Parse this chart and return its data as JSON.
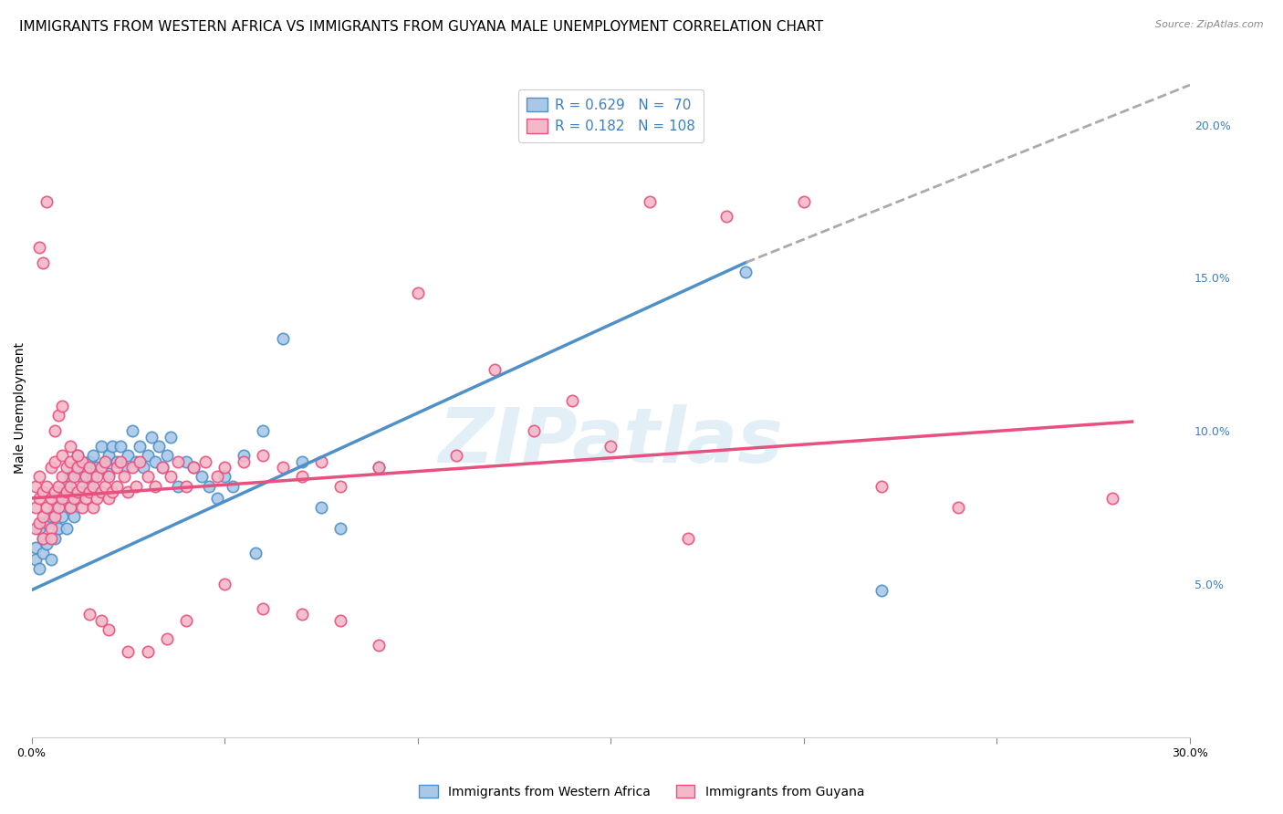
{
  "title": "IMMIGRANTS FROM WESTERN AFRICA VS IMMIGRANTS FROM GUYANA MALE UNEMPLOYMENT CORRELATION CHART",
  "source": "Source: ZipAtlas.com",
  "ylabel": "Male Unemployment",
  "xlim": [
    0.0,
    0.3
  ],
  "ylim": [
    0.0,
    0.215
  ],
  "yticks_right": [
    0.05,
    0.1,
    0.15,
    0.2
  ],
  "ytick_labels_right": [
    "5.0%",
    "10.0%",
    "15.0%",
    "20.0%"
  ],
  "color_blue_fill": "#a8c8e8",
  "color_pink_fill": "#f4b8c8",
  "color_blue_line": "#5090c8",
  "color_pink_line": "#e85080",
  "color_blue_text": "#4080c0",
  "color_dashed_line": "#aaaaaa",
  "watermark": "ZIPatlas",
  "legend_label_blue": "Immigrants from Western Africa",
  "legend_label_pink": "Immigrants from Guyana",
  "blue_line_x": [
    0.0,
    0.185
  ],
  "blue_line_y": [
    0.048,
    0.155
  ],
  "pink_line_x": [
    0.0,
    0.285
  ],
  "pink_line_y": [
    0.078,
    0.103
  ],
  "dashed_line_x": [
    0.185,
    0.3
  ],
  "dashed_line_y": [
    0.155,
    0.213
  ],
  "bg_color": "#ffffff",
  "grid_color": "#dddddd",
  "title_fontsize": 11,
  "axis_fontsize": 10,
  "blue_scatter_x": [
    0.001,
    0.001,
    0.002,
    0.002,
    0.003,
    0.003,
    0.004,
    0.004,
    0.005,
    0.005,
    0.006,
    0.006,
    0.007,
    0.007,
    0.008,
    0.008,
    0.009,
    0.009,
    0.01,
    0.01,
    0.011,
    0.011,
    0.012,
    0.012,
    0.013,
    0.013,
    0.014,
    0.015,
    0.015,
    0.016,
    0.016,
    0.017,
    0.018,
    0.019,
    0.02,
    0.02,
    0.021,
    0.022,
    0.023,
    0.024,
    0.025,
    0.026,
    0.027,
    0.028,
    0.029,
    0.03,
    0.031,
    0.032,
    0.033,
    0.034,
    0.035,
    0.036,
    0.038,
    0.04,
    0.042,
    0.044,
    0.046,
    0.048,
    0.05,
    0.052,
    0.055,
    0.058,
    0.06,
    0.065,
    0.07,
    0.075,
    0.08,
    0.09,
    0.185,
    0.22
  ],
  "blue_scatter_y": [
    0.058,
    0.062,
    0.055,
    0.068,
    0.06,
    0.065,
    0.063,
    0.07,
    0.058,
    0.072,
    0.065,
    0.075,
    0.068,
    0.078,
    0.072,
    0.08,
    0.068,
    0.082,
    0.075,
    0.085,
    0.072,
    0.088,
    0.078,
    0.092,
    0.08,
    0.085,
    0.088,
    0.082,
    0.09,
    0.085,
    0.092,
    0.088,
    0.095,
    0.09,
    0.092,
    0.086,
    0.095,
    0.09,
    0.095,
    0.088,
    0.092,
    0.1,
    0.09,
    0.095,
    0.088,
    0.092,
    0.098,
    0.09,
    0.095,
    0.088,
    0.092,
    0.098,
    0.082,
    0.09,
    0.088,
    0.085,
    0.082,
    0.078,
    0.085,
    0.082,
    0.092,
    0.06,
    0.1,
    0.13,
    0.09,
    0.075,
    0.068,
    0.088,
    0.152,
    0.048
  ],
  "pink_scatter_x": [
    0.001,
    0.001,
    0.001,
    0.002,
    0.002,
    0.002,
    0.003,
    0.003,
    0.003,
    0.004,
    0.004,
    0.005,
    0.005,
    0.005,
    0.006,
    0.006,
    0.006,
    0.007,
    0.007,
    0.008,
    0.008,
    0.008,
    0.009,
    0.009,
    0.01,
    0.01,
    0.01,
    0.011,
    0.011,
    0.012,
    0.012,
    0.013,
    0.013,
    0.013,
    0.014,
    0.014,
    0.015,
    0.015,
    0.016,
    0.016,
    0.017,
    0.017,
    0.018,
    0.018,
    0.019,
    0.019,
    0.02,
    0.02,
    0.021,
    0.022,
    0.022,
    0.023,
    0.024,
    0.025,
    0.026,
    0.027,
    0.028,
    0.03,
    0.032,
    0.034,
    0.036,
    0.038,
    0.04,
    0.042,
    0.045,
    0.048,
    0.05,
    0.055,
    0.06,
    0.065,
    0.07,
    0.075,
    0.08,
    0.09,
    0.1,
    0.11,
    0.12,
    0.13,
    0.14,
    0.15,
    0.16,
    0.17,
    0.18,
    0.2,
    0.22,
    0.24,
    0.28,
    0.002,
    0.003,
    0.004,
    0.005,
    0.006,
    0.007,
    0.008,
    0.01,
    0.012,
    0.015,
    0.018,
    0.02,
    0.025,
    0.03,
    0.035,
    0.04,
    0.05,
    0.06,
    0.07,
    0.08,
    0.09
  ],
  "pink_scatter_y": [
    0.068,
    0.075,
    0.082,
    0.07,
    0.078,
    0.085,
    0.065,
    0.072,
    0.08,
    0.075,
    0.082,
    0.068,
    0.078,
    0.088,
    0.072,
    0.08,
    0.09,
    0.075,
    0.082,
    0.078,
    0.085,
    0.092,
    0.08,
    0.088,
    0.075,
    0.082,
    0.09,
    0.078,
    0.085,
    0.08,
    0.088,
    0.075,
    0.082,
    0.09,
    0.078,
    0.085,
    0.08,
    0.088,
    0.075,
    0.082,
    0.078,
    0.085,
    0.08,
    0.088,
    0.082,
    0.09,
    0.078,
    0.085,
    0.08,
    0.088,
    0.082,
    0.09,
    0.085,
    0.08,
    0.088,
    0.082,
    0.09,
    0.085,
    0.082,
    0.088,
    0.085,
    0.09,
    0.082,
    0.088,
    0.09,
    0.085,
    0.088,
    0.09,
    0.092,
    0.088,
    0.085,
    0.09,
    0.082,
    0.088,
    0.145,
    0.092,
    0.12,
    0.1,
    0.11,
    0.095,
    0.175,
    0.065,
    0.17,
    0.175,
    0.082,
    0.075,
    0.078,
    0.16,
    0.155,
    0.175,
    0.065,
    0.1,
    0.105,
    0.108,
    0.095,
    0.092,
    0.04,
    0.038,
    0.035,
    0.028,
    0.028,
    0.032,
    0.038,
    0.05,
    0.042,
    0.04,
    0.038,
    0.03
  ]
}
